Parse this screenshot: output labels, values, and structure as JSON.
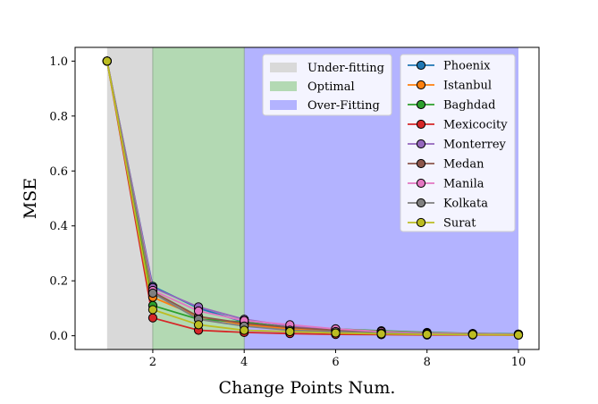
{
  "chart_data": {
    "type": "line",
    "title": "",
    "xlabel": "Change Points Num.",
    "ylabel": "MSE",
    "xlim": [
      0.3,
      10.45
    ],
    "ylim": [
      -0.05,
      1.05
    ],
    "xticks": [
      2,
      4,
      6,
      8,
      10
    ],
    "yticks": [
      0.0,
      0.2,
      0.4,
      0.6,
      0.8,
      1.0
    ],
    "xtick_labels": [
      "2",
      "4",
      "6",
      "8",
      "10"
    ],
    "ytick_labels": [
      "0.0",
      "0.2",
      "0.4",
      "0.6",
      "0.8",
      "1.0"
    ],
    "grid": false,
    "regions": [
      {
        "name": "Under-fitting",
        "x": [
          1,
          2
        ],
        "color": "#d9d9d9"
      },
      {
        "name": "Optimal",
        "x": [
          2,
          4
        ],
        "color": "#b3d9b3"
      },
      {
        "name": "Over-Fitting",
        "x": [
          4,
          10
        ],
        "color": "#b3b3ff"
      }
    ],
    "x": [
      1,
      2,
      3,
      4,
      5,
      6,
      7,
      8,
      9,
      10
    ],
    "series": [
      {
        "name": "Phoenix",
        "color": "#1f77b4",
        "values": [
          1.0,
          0.18,
          0.1,
          0.05,
          0.03,
          0.02,
          0.015,
          0.01,
          0.008,
          0.006
        ]
      },
      {
        "name": "Istanbul",
        "color": "#ff7f0e",
        "values": [
          1.0,
          0.14,
          0.07,
          0.04,
          0.025,
          0.015,
          0.01,
          0.008,
          0.006,
          0.005
        ]
      },
      {
        "name": "Baghdad",
        "color": "#2ca02c",
        "values": [
          1.0,
          0.11,
          0.06,
          0.05,
          0.03,
          0.025,
          0.018,
          0.012,
          0.008,
          0.006
        ]
      },
      {
        "name": "Mexicocity",
        "color": "#d62728",
        "values": [
          1.0,
          0.065,
          0.02,
          0.012,
          0.008,
          0.005,
          0.004,
          0.003,
          0.003,
          0.002
        ]
      },
      {
        "name": "Monterrey",
        "color": "#9467bd",
        "values": [
          1.0,
          0.175,
          0.105,
          0.06,
          0.035,
          0.02,
          0.012,
          0.008,
          0.006,
          0.005
        ]
      },
      {
        "name": "Medan",
        "color": "#8c564b",
        "values": [
          1.0,
          0.16,
          0.07,
          0.045,
          0.03,
          0.02,
          0.013,
          0.009,
          0.007,
          0.005
        ]
      },
      {
        "name": "Manila",
        "color": "#e377c2",
        "values": [
          1.0,
          0.165,
          0.09,
          0.055,
          0.04,
          0.025,
          0.015,
          0.01,
          0.007,
          0.005
        ]
      },
      {
        "name": "Kolkata",
        "color": "#7f7f7f",
        "values": [
          1.0,
          0.155,
          0.06,
          0.035,
          0.02,
          0.015,
          0.01,
          0.007,
          0.005,
          0.004
        ]
      },
      {
        "name": "Surat",
        "color": "#bcbd22",
        "values": [
          1.0,
          0.095,
          0.04,
          0.02,
          0.015,
          0.01,
          0.007,
          0.005,
          0.004,
          0.003
        ]
      }
    ]
  }
}
